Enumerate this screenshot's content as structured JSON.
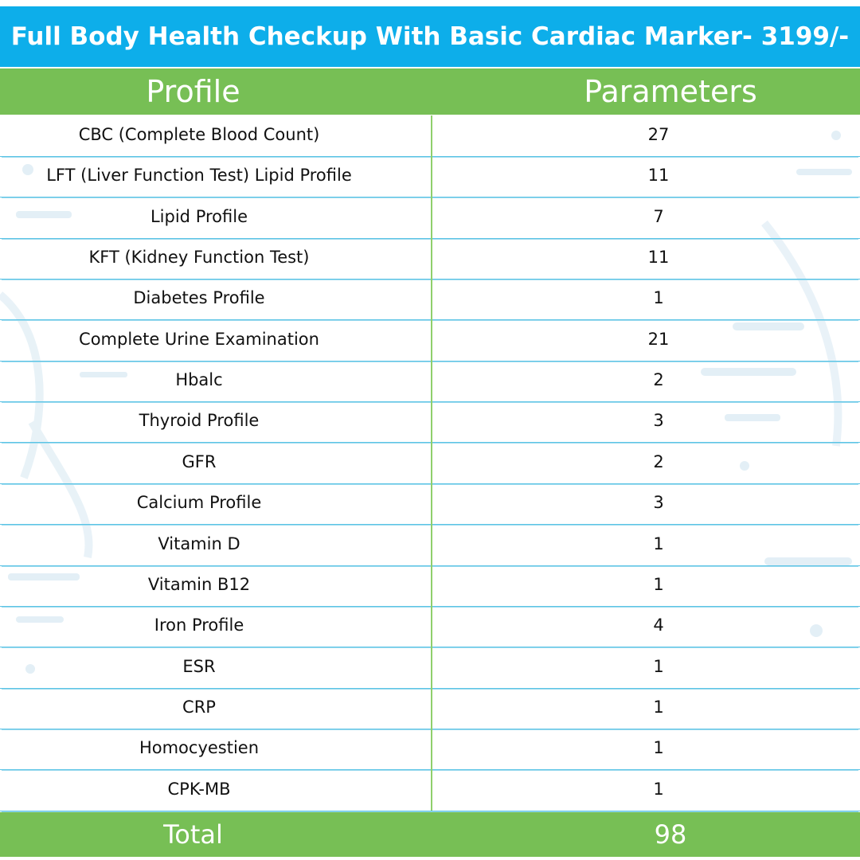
{
  "header": {
    "title": "Full Body Health Checkup With Basic Cardiac Marker- 3199/-"
  },
  "table": {
    "columns": [
      "Profile",
      "Parameters"
    ],
    "rows": [
      [
        "CBC (Complete Blood Count)",
        27
      ],
      [
        "LFT (Liver Function Test) Lipid Profile",
        11
      ],
      [
        "Lipid Profile",
        7
      ],
      [
        "KFT (Kidney Function Test)",
        11
      ],
      [
        "Diabetes Profile",
        1
      ],
      [
        "Complete Urine Examination",
        21
      ],
      [
        "Hbalc",
        2
      ],
      [
        "Thyroid Profile",
        3
      ],
      [
        "GFR",
        2
      ],
      [
        "Calcium Profile",
        3
      ],
      [
        "Vitamin D",
        1
      ],
      [
        "Vitamin B12",
        1
      ],
      [
        "Iron Profile",
        4
      ],
      [
        "ESR",
        1
      ],
      [
        "CRP",
        1
      ],
      [
        "Homocyestien",
        1
      ],
      [
        "CPK-MB",
        1
      ]
    ],
    "footer": [
      "Total",
      98
    ]
  }
}
